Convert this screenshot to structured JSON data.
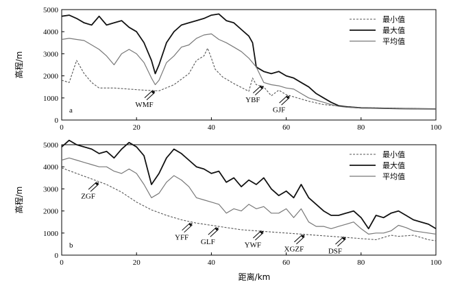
{
  "x_axis_label": "距离/km",
  "chart_data": [
    {
      "type": "line",
      "panel_label": "a",
      "ylabel": "高程/m",
      "xlim": [
        0,
        100
      ],
      "ylim": [
        0,
        5000
      ],
      "x_ticks": [
        "0",
        "20",
        "40",
        "60",
        "80",
        "100"
      ],
      "y_ticks": [
        "0",
        "1000",
        "2000",
        "3000",
        "4000",
        "5000"
      ],
      "legend_position": "top-right",
      "series": [
        {
          "name": "最小值",
          "style": "dashed",
          "color": "#555555",
          "x": [
            0,
            2,
            4,
            6,
            8,
            10,
            14,
            18,
            22,
            26,
            30,
            34,
            36,
            38,
            39,
            40,
            41,
            43,
            46,
            50,
            51,
            52,
            54,
            56,
            58,
            60,
            63,
            66,
            70,
            75,
            80,
            90,
            100
          ],
          "y": [
            1800,
            1700,
            2700,
            2100,
            1700,
            1450,
            1450,
            1400,
            1350,
            1320,
            1600,
            2100,
            2700,
            2900,
            3250,
            2800,
            2300,
            1950,
            1650,
            1300,
            1900,
            1600,
            1500,
            1100,
            1350,
            1150,
            1000,
            850,
            700,
            620,
            560,
            530,
            500
          ]
        },
        {
          "name": "最大值",
          "style": "solid-thick",
          "color": "#111111",
          "x": [
            0,
            2,
            4,
            6,
            8,
            10,
            12,
            14,
            16,
            18,
            20,
            22,
            24,
            25,
            26,
            28,
            30,
            32,
            34,
            36,
            38,
            40,
            42,
            44,
            46,
            48,
            50,
            51,
            52,
            54,
            56,
            58,
            60,
            62,
            64,
            66,
            68,
            70,
            72,
            74,
            76,
            80,
            90,
            100
          ],
          "y": [
            4700,
            4750,
            4600,
            4400,
            4300,
            4700,
            4300,
            4400,
            4500,
            4200,
            4000,
            3500,
            2700,
            2100,
            2500,
            3500,
            4000,
            4300,
            4400,
            4500,
            4600,
            4750,
            4800,
            4500,
            4400,
            4100,
            3800,
            3500,
            2400,
            2200,
            2100,
            2200,
            2000,
            1900,
            1700,
            1500,
            1200,
            1000,
            800,
            650,
            600,
            550,
            520,
            500
          ]
        },
        {
          "name": "平均值",
          "style": "solid",
          "color": "#777777",
          "x": [
            0,
            2,
            4,
            6,
            8,
            10,
            12,
            14,
            16,
            18,
            20,
            22,
            24,
            25,
            26,
            28,
            30,
            32,
            34,
            36,
            38,
            40,
            42,
            44,
            46,
            48,
            50,
            52,
            54,
            56,
            58,
            60,
            62,
            64,
            66,
            68,
            70,
            72,
            74,
            76,
            80,
            90,
            100
          ],
          "y": [
            3650,
            3700,
            3650,
            3600,
            3400,
            3200,
            2900,
            2500,
            3000,
            3200,
            3000,
            2600,
            1900,
            1600,
            1800,
            2600,
            2900,
            3300,
            3400,
            3700,
            3850,
            3900,
            3650,
            3500,
            3300,
            3100,
            2800,
            2400,
            1700,
            1600,
            1550,
            1450,
            1400,
            1200,
            1000,
            900,
            800,
            700,
            620,
            580,
            540,
            520,
            500
          ]
        }
      ],
      "faults": [
        {
          "label": "WMF",
          "x": 25,
          "y": 1330
        },
        {
          "label": "YBF",
          "x": 54,
          "y": 1550
        },
        {
          "label": "GJF",
          "x": 61,
          "y": 1100
        }
      ]
    },
    {
      "type": "line",
      "panel_label": "b",
      "xlabel": "距离/km",
      "ylabel": "高程/m",
      "xlim": [
        0,
        100
      ],
      "ylim": [
        0,
        5000
      ],
      "x_ticks": [
        "0",
        "20",
        "40",
        "60",
        "80",
        "100"
      ],
      "y_ticks": [
        "0",
        "1000",
        "2000",
        "3000",
        "4000",
        "5000"
      ],
      "legend_position": "top-right",
      "series": [
        {
          "name": "最小值",
          "style": "dashed",
          "color": "#555555",
          "x": [
            0,
            4,
            8,
            12,
            16,
            20,
            24,
            28,
            32,
            36,
            40,
            44,
            48,
            52,
            56,
            60,
            64,
            68,
            72,
            76,
            80,
            84,
            86,
            88,
            90,
            94,
            98,
            100
          ],
          "y": [
            3950,
            3700,
            3450,
            3200,
            2850,
            2400,
            2050,
            1800,
            1600,
            1450,
            1350,
            1250,
            1150,
            1100,
            1050,
            1000,
            950,
            900,
            850,
            800,
            750,
            700,
            800,
            900,
            850,
            900,
            700,
            650
          ]
        },
        {
          "name": "最大值",
          "style": "solid-thick",
          "color": "#111111",
          "x": [
            0,
            2,
            4,
            6,
            8,
            10,
            12,
            14,
            16,
            18,
            20,
            22,
            24,
            26,
            28,
            30,
            32,
            34,
            36,
            38,
            40,
            42,
            44,
            46,
            48,
            50,
            52,
            54,
            56,
            58,
            60,
            62,
            64,
            66,
            68,
            70,
            72,
            74,
            76,
            78,
            80,
            82,
            84,
            86,
            88,
            90,
            92,
            94,
            96,
            98,
            100
          ],
          "y": [
            4900,
            5200,
            5000,
            4900,
            4800,
            4600,
            4700,
            4400,
            4800,
            5100,
            4900,
            4500,
            3200,
            3700,
            4400,
            4800,
            4600,
            4300,
            4000,
            3900,
            3700,
            3800,
            3300,
            3500,
            3100,
            3400,
            3200,
            3500,
            3000,
            2700,
            2900,
            2600,
            3200,
            2600,
            2300,
            2000,
            1800,
            1800,
            1900,
            2000,
            1700,
            1200,
            1800,
            1700,
            1900,
            2000,
            1800,
            1600,
            1500,
            1400,
            1200
          ]
        },
        {
          "name": "平均值",
          "style": "solid",
          "color": "#777777",
          "x": [
            0,
            2,
            4,
            6,
            8,
            10,
            12,
            14,
            16,
            18,
            20,
            22,
            24,
            26,
            28,
            30,
            32,
            34,
            36,
            38,
            40,
            42,
            44,
            46,
            48,
            50,
            52,
            54,
            56,
            58,
            60,
            62,
            64,
            66,
            68,
            70,
            72,
            74,
            76,
            78,
            80,
            82,
            84,
            86,
            88,
            90,
            92,
            94,
            96,
            98,
            100
          ],
          "y": [
            4300,
            4400,
            4300,
            4200,
            4100,
            4000,
            4000,
            3800,
            3700,
            3900,
            3700,
            3200,
            2600,
            2800,
            3300,
            3600,
            3400,
            3100,
            2600,
            2500,
            2400,
            2300,
            1900,
            2100,
            2000,
            2300,
            2100,
            2200,
            1900,
            1900,
            2100,
            1700,
            2100,
            1500,
            1300,
            1300,
            1200,
            1300,
            1400,
            1500,
            1200,
            950,
            1000,
            1000,
            1100,
            1350,
            1250,
            1100,
            1050,
            1000,
            950
          ]
        }
      ],
      "faults": [
        {
          "label": "ZGF",
          "x": 10,
          "y": 3300
        },
        {
          "label": "YFF",
          "x": 35,
          "y": 1450
        },
        {
          "label": "GLF",
          "x": 42,
          "y": 1250
        },
        {
          "label": "YWF",
          "x": 54,
          "y": 1100
        },
        {
          "label": "XGZF",
          "x": 65,
          "y": 920
        },
        {
          "label": "DSF",
          "x": 76,
          "y": 820
        }
      ]
    }
  ]
}
